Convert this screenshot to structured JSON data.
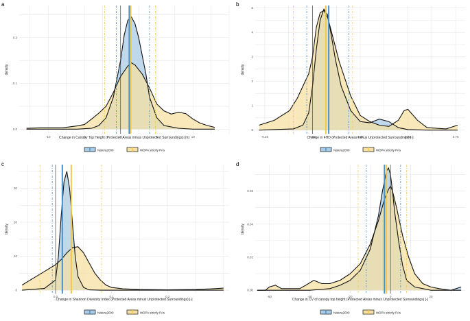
{
  "colors": {
    "natura": "#4a90c8",
    "natura_fill": "#a9cbe6",
    "wdpa": "#f2c84b",
    "wdpa_fill": "#f5e0a3",
    "overlap": "#9ab08a",
    "grid": "#e6e6e6",
    "axis_text": "#555555"
  },
  "chart_data": [
    {
      "panel": "a",
      "type": "area",
      "xlabel": "Change in Canopy Top Height (Protected Areas minus Unprotected Surroundings) [m]",
      "ylabel": "density",
      "xlim": [
        -14,
        15
      ],
      "ylim": [
        -0.01,
        0.27
      ],
      "xticks": [
        -10,
        -5,
        0,
        5,
        10
      ],
      "xtick_labels": [
        "-10",
        "-5",
        "0",
        "5",
        "10"
      ],
      "yticks": [
        0,
        0.1,
        0.2
      ],
      "ytick_labels": [
        "0.0",
        "0.1",
        "0.2"
      ],
      "series": [
        {
          "name": "Natura2000",
          "key": "natura",
          "x": [
            -13,
            -10,
            -6,
            -4,
            -3,
            -2,
            -1,
            0,
            0.5,
            1,
            1.5,
            2,
            2.5,
            3,
            3.5,
            4,
            5,
            6,
            8,
            10,
            13
          ],
          "y": [
            0,
            0,
            0,
            0.002,
            0.008,
            0.025,
            0.07,
            0.15,
            0.205,
            0.238,
            0.245,
            0.23,
            0.2,
            0.16,
            0.12,
            0.07,
            0.025,
            0.008,
            0.002,
            0,
            0
          ]
        },
        {
          "name": "WDPA strictly PAs",
          "key": "wdpa",
          "x": [
            -13,
            -11,
            -8,
            -6,
            -5,
            -4,
            -3,
            -2,
            -1,
            0,
            1,
            1.5,
            2,
            3,
            4,
            5,
            6,
            7,
            8,
            9,
            10,
            11,
            12,
            13
          ],
          "y": [
            0.002,
            0.003,
            0.003,
            0.007,
            0.01,
            0.022,
            0.035,
            0.05,
            0.08,
            0.115,
            0.138,
            0.145,
            0.14,
            0.12,
            0.09,
            0.055,
            0.04,
            0.033,
            0.037,
            0.034,
            0.022,
            0.013,
            0.008,
            0.004
          ]
        }
      ],
      "vlines": [
        {
          "x": -0.6,
          "key": "natura",
          "style": "dash"
        },
        {
          "x": -2.2,
          "key": "wdpa",
          "style": "dash"
        },
        {
          "x": 4.0,
          "key": "natura",
          "style": "dash"
        },
        {
          "x": 4.8,
          "key": "wdpa",
          "style": "dash"
        },
        {
          "x": 0,
          "key": "axis_text",
          "style": "solid-thin"
        },
        {
          "x": 1.2,
          "key": "natura",
          "style": "solid"
        },
        {
          "x": 1.4,
          "key": "wdpa",
          "style": "solid"
        }
      ]
    },
    {
      "panel": "b",
      "type": "area",
      "xlabel": "Change in FHD (Protected Areas minus Unprotected Surroundings) [-]",
      "ylabel": "density",
      "xlim": [
        -0.3,
        0.8
      ],
      "ylim": [
        -0.15,
        5.1
      ],
      "xticks": [
        -0.25,
        0,
        0.25,
        0.5,
        0.75
      ],
      "xtick_labels": [
        "-0.25",
        "0.00",
        "0.25",
        "0.50",
        "0.75"
      ],
      "yticks": [
        0,
        1,
        2,
        3,
        4,
        5
      ],
      "ytick_labels": [
        "0",
        "1",
        "2",
        "3",
        "4",
        "5"
      ],
      "series": [
        {
          "name": "Natura2000",
          "key": "natura",
          "x": [
            -0.28,
            -0.1,
            -0.05,
            -0.02,
            0,
            0.02,
            0.04,
            0.06,
            0.08,
            0.1,
            0.12,
            0.15,
            0.2,
            0.25,
            0.3,
            0.35,
            0.4,
            0.45,
            0.5,
            0.6,
            0.76
          ],
          "y": [
            0,
            0.05,
            0.2,
            0.7,
            1.8,
            3.3,
            4.5,
            4.95,
            4.7,
            3.8,
            2.9,
            1.8,
            0.8,
            0.35,
            0.3,
            0.45,
            0.35,
            0.1,
            0.02,
            0,
            0
          ]
        },
        {
          "name": "WDPA strictly PAs",
          "key": "wdpa",
          "x": [
            -0.28,
            -0.2,
            -0.12,
            -0.08,
            -0.05,
            -0.02,
            0,
            0.02,
            0.04,
            0.06,
            0.08,
            0.1,
            0.14,
            0.2,
            0.25,
            0.3,
            0.35,
            0.4,
            0.45,
            0.48,
            0.5,
            0.55,
            0.6,
            0.7,
            0.76
          ],
          "y": [
            0.2,
            0.4,
            0.8,
            1.3,
            1.8,
            2.3,
            3.0,
            4.2,
            4.8,
            4.9,
            4.6,
            4.0,
            2.8,
            1.4,
            0.6,
            0.35,
            0.2,
            0.15,
            0.4,
            0.8,
            0.85,
            0.4,
            0.1,
            0.05,
            0.2
          ]
        }
      ],
      "vlines": [
        {
          "x": -0.03,
          "key": "natura",
          "style": "dash"
        },
        {
          "x": -0.1,
          "key": "wdpa",
          "style": "dash"
        },
        {
          "x": 0.19,
          "key": "natura",
          "style": "dash"
        },
        {
          "x": 0.21,
          "key": "wdpa",
          "style": "dash"
        },
        {
          "x": 0,
          "key": "axis_text",
          "style": "solid-thin"
        },
        {
          "x": 0.085,
          "key": "natura",
          "style": "solid"
        },
        {
          "x": 0.07,
          "key": "wdpa",
          "style": "solid"
        }
      ]
    },
    {
      "panel": "c",
      "type": "area",
      "xlabel": "Change in Shannon Diversity Index (Protected Areas minus Unprotected Surroundings) [-]",
      "ylabel": "density",
      "xlim": [
        -0.065,
        0.31
      ],
      "ylim": [
        -1,
        37
      ],
      "xticks": [
        0,
        0.1,
        0.2
      ],
      "xtick_labels": [
        "0.0",
        "0.1",
        "0.2"
      ],
      "yticks": [
        0,
        10,
        20,
        30
      ],
      "ytick_labels": [
        "0",
        "10",
        "20",
        "30"
      ],
      "series": [
        {
          "name": "Natura2000",
          "key": "natura",
          "x": [
            -0.06,
            -0.02,
            0,
            0.005,
            0.01,
            0.015,
            0.02,
            0.025,
            0.03,
            0.035,
            0.04,
            0.05,
            0.06,
            0.08,
            0.3
          ],
          "y": [
            0,
            0.5,
            3,
            10,
            22,
            32,
            35,
            30,
            20,
            10,
            4,
            0.8,
            0.1,
            0,
            0
          ]
        },
        {
          "name": "WDPA strictly PAs",
          "key": "wdpa",
          "x": [
            -0.06,
            -0.04,
            -0.02,
            0,
            0.01,
            0.02,
            0.03,
            0.04,
            0.05,
            0.06,
            0.07,
            0.08,
            0.09,
            0.1,
            0.12,
            0.15,
            0.2,
            0.25,
            0.28,
            0.3
          ],
          "y": [
            1.5,
            3.5,
            5.5,
            7.5,
            9,
            11,
            12.5,
            12.8,
            11,
            8,
            5,
            3,
            1.5,
            0.8,
            0.4,
            0.2,
            0.1,
            0.2,
            0.4,
            0.6
          ]
        }
      ],
      "vlines": [
        {
          "x": -0.006,
          "key": "natura",
          "style": "dash"
        },
        {
          "x": -0.028,
          "key": "wdpa",
          "style": "dash"
        },
        {
          "x": 0.028,
          "key": "natura",
          "style": "dash"
        },
        {
          "x": 0.082,
          "key": "wdpa",
          "style": "dash"
        },
        {
          "x": 0,
          "key": "axis_text",
          "style": "solid-thin"
        },
        {
          "x": 0.012,
          "key": "natura",
          "style": "solid"
        },
        {
          "x": 0.028,
          "key": "wdpa",
          "style": "solid"
        }
      ]
    },
    {
      "panel": "d",
      "type": "area",
      "xlabel": "Change in CV of canopy top height (Protected Areas minus Unprotected Surroundings) [-]",
      "ylabel": "density",
      "xlim": [
        -67,
        37
      ],
      "ylim": [
        -0.002,
        0.076
      ],
      "xticks": [
        -60,
        -40,
        -20,
        0,
        20
      ],
      "xtick_labels": [
        "-60",
        "-40",
        "-20",
        "0",
        "20"
      ],
      "yticks": [
        0,
        0.02,
        0.04,
        0.06
      ],
      "ytick_labels": [
        "0.00",
        "0.02",
        "0.04",
        "0.06"
      ],
      "series": [
        {
          "name": "Natura2000",
          "key": "natura",
          "x": [
            -66,
            -40,
            -30,
            -25,
            -20,
            -15,
            -10,
            -6,
            -4,
            -2,
            -1,
            0,
            1,
            2,
            4,
            6,
            8,
            12,
            20,
            30,
            35
          ],
          "y": [
            0,
            0,
            0.001,
            0.003,
            0.006,
            0.012,
            0.025,
            0.045,
            0.06,
            0.072,
            0.074,
            0.07,
            0.06,
            0.048,
            0.03,
            0.015,
            0.006,
            0.002,
            0,
            0,
            0.002
          ]
        },
        {
          "name": "WDPA strictly PAs",
          "key": "wdpa",
          "x": [
            -66,
            -62,
            -60,
            -57,
            -54,
            -45,
            -42,
            -38,
            -34,
            -30,
            -25,
            -20,
            -15,
            -10,
            -6,
            -3,
            -1,
            0,
            1,
            3,
            6,
            9,
            12,
            16,
            20,
            24,
            30,
            35
          ],
          "y": [
            0,
            0,
            0.002,
            0.003,
            0.001,
            0.001,
            0.003,
            0.006,
            0.004,
            0.004,
            0.006,
            0.01,
            0.016,
            0.028,
            0.042,
            0.055,
            0.061,
            0.063,
            0.06,
            0.05,
            0.033,
            0.02,
            0.01,
            0.004,
            0.002,
            0.001,
            0,
            0
          ]
        }
      ],
      "vlines": [
        {
          "x": -12,
          "key": "natura",
          "style": "dash"
        },
        {
          "x": -16,
          "key": "wdpa",
          "style": "dash"
        },
        {
          "x": 5,
          "key": "natura",
          "style": "dash"
        },
        {
          "x": 8,
          "key": "wdpa",
          "style": "dash"
        },
        {
          "x": 0,
          "key": "axis_text",
          "style": "solid-thin"
        },
        {
          "x": -3,
          "key": "natura",
          "style": "solid"
        },
        {
          "x": -2,
          "key": "wdpa",
          "style": "solid"
        }
      ]
    }
  ],
  "legend": {
    "items": [
      {
        "label": "Natura2000",
        "key": "natura"
      },
      {
        "label": "WDPA strictly PAs",
        "key": "wdpa"
      }
    ]
  }
}
